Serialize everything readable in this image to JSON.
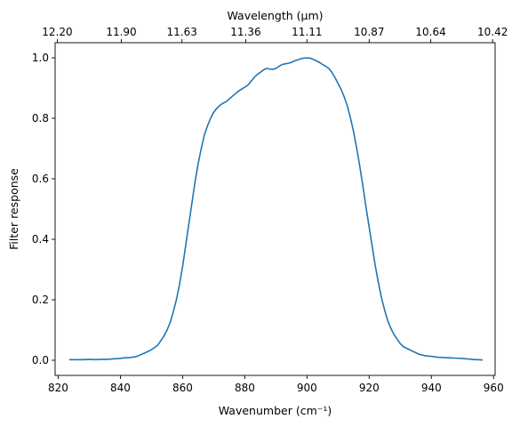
{
  "chart_data": {
    "type": "line",
    "title": "",
    "xlabel": "Wavenumber (cm⁻¹)",
    "ylabel": "Filter response",
    "top_xlabel": "Wavelength (μm)",
    "xlim": [
      819,
      960.5
    ],
    "ylim": [
      -0.05,
      1.05
    ],
    "x_ticks": [
      820,
      840,
      860,
      880,
      900,
      920,
      940,
      960
    ],
    "y_ticks": [
      0.0,
      0.2,
      0.4,
      0.6,
      0.8,
      1.0
    ],
    "top_tick_labels": [
      "12.20",
      "11.90",
      "11.63",
      "11.36",
      "11.11",
      "10.87",
      "10.64",
      "10.42"
    ],
    "top_tick_positions": [
      819.7,
      840.3,
      859.8,
      880.3,
      900.0,
      920.0,
      939.8,
      959.7
    ],
    "grid": false,
    "legend": "none",
    "series": [
      {
        "color": "#1f77b4",
        "x": [
          823.5,
          826,
          828,
          830,
          832,
          834,
          836,
          838,
          840,
          841,
          843,
          845,
          846,
          848,
          850,
          852,
          853,
          854,
          855,
          856,
          857,
          858,
          859,
          860,
          861,
          862,
          863,
          864,
          865,
          866,
          867,
          868,
          869,
          870,
          871,
          872,
          873,
          874,
          876,
          878,
          880,
          881,
          882,
          883,
          884,
          885,
          886,
          887,
          888,
          889,
          890,
          891,
          892,
          893,
          894,
          895,
          896,
          897,
          898,
          899,
          900,
          901,
          902,
          903,
          904,
          905,
          906,
          907,
          908,
          909,
          910,
          911,
          912,
          913,
          914,
          915,
          916,
          917,
          918,
          919,
          920,
          921,
          922,
          923,
          924,
          925,
          926,
          927,
          928,
          929,
          930,
          931,
          932,
          933,
          934,
          935,
          936,
          938,
          940,
          942,
          944,
          946,
          948,
          950,
          951,
          952,
          953,
          954,
          955,
          956.5
        ],
        "y": [
          0.002,
          0.002,
          0.002,
          0.003,
          0.002,
          0.003,
          0.003,
          0.005,
          0.006,
          0.008,
          0.009,
          0.012,
          0.016,
          0.025,
          0.035,
          0.05,
          0.065,
          0.08,
          0.1,
          0.125,
          0.16,
          0.2,
          0.25,
          0.31,
          0.38,
          0.45,
          0.52,
          0.59,
          0.65,
          0.7,
          0.745,
          0.775,
          0.8,
          0.82,
          0.833,
          0.843,
          0.85,
          0.855,
          0.873,
          0.89,
          0.903,
          0.91,
          0.922,
          0.935,
          0.945,
          0.952,
          0.96,
          0.965,
          0.963,
          0.962,
          0.965,
          0.972,
          0.978,
          0.98,
          0.982,
          0.985,
          0.99,
          0.993,
          0.997,
          0.999,
          1.0,
          0.999,
          0.995,
          0.99,
          0.985,
          0.978,
          0.972,
          0.965,
          0.952,
          0.935,
          0.915,
          0.895,
          0.87,
          0.84,
          0.8,
          0.755,
          0.7,
          0.64,
          0.575,
          0.505,
          0.44,
          0.375,
          0.31,
          0.255,
          0.205,
          0.165,
          0.13,
          0.105,
          0.085,
          0.07,
          0.055,
          0.045,
          0.04,
          0.035,
          0.03,
          0.025,
          0.02,
          0.015,
          0.013,
          0.01,
          0.009,
          0.008,
          0.007,
          0.006,
          0.005,
          0.004,
          0.003,
          0.002,
          0.002,
          0.001
        ]
      }
    ]
  }
}
